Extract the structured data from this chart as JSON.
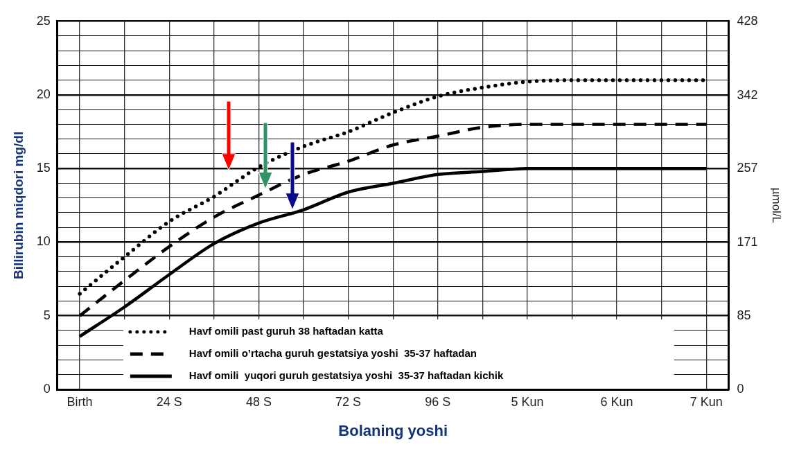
{
  "chart_data": {
    "type": "line",
    "xlabel": "Bolaning yoshi",
    "ylabel": "Billirubin miqdori mg/dl",
    "y2label": "µmol/L",
    "categories": [
      "Birth",
      null,
      "24 S",
      null,
      "48 S",
      null,
      "72 S",
      null,
      "96 S",
      null,
      "5 Kun",
      null,
      "6 Kun",
      null,
      "7 Kun"
    ],
    "ylim": [
      0,
      25
    ],
    "yticks": [
      0,
      {
        "value": 1,
        "label": null
      },
      {
        "value": 2,
        "label": null
      },
      {
        "value": 3,
        "label": null
      },
      {
        "value": 4,
        "label": null
      },
      5,
      {
        "value": 6,
        "label": null
      },
      {
        "value": 7,
        "label": null
      },
      {
        "value": 8,
        "label": null
      },
      {
        "value": 9,
        "label": null
      },
      10,
      {
        "value": 11,
        "label": null
      },
      {
        "value": 12,
        "label": null
      },
      {
        "value": 13,
        "label": null
      },
      {
        "value": 14,
        "label": null
      },
      15,
      {
        "value": 16,
        "label": null
      },
      {
        "value": 17,
        "label": null
      },
      {
        "value": 18,
        "label": null
      },
      {
        "value": 19,
        "label": null
      },
      20,
      {
        "value": 21,
        "label": null
      },
      {
        "value": 22,
        "label": null
      },
      {
        "value": 23,
        "label": null
      },
      {
        "value": 24,
        "label": null
      },
      25
    ],
    "y2lim": [
      0,
      428
    ],
    "y2ticks": [
      0,
      85,
      171,
      257,
      342,
      428
    ],
    "grid": true,
    "legend": "bottom",
    "marker": "none",
    "series": [
      {
        "name": "Havf omili past guruh 38 haftadan katta",
        "color": "#000000",
        "line_style": "dotted",
        "values": [
          6.5,
          9.0,
          11.4,
          13.1,
          15.1,
          16.5,
          17.5,
          18.8,
          19.9,
          20.5,
          20.9,
          21,
          21,
          21,
          21
        ]
      },
      {
        "name": "Havf omili o’rtacha guruh gestatsiya yoshi  35-37 haftadan",
        "color": "#000000",
        "line_style": "dashed",
        "values": [
          5.0,
          7.4,
          9.7,
          11.7,
          13.2,
          14.6,
          15.5,
          16.6,
          17.2,
          17.8,
          18.0,
          18,
          18,
          18,
          18
        ]
      },
      {
        "name": "Havf omili  yuqori guruh gestatsiya yoshi  35-37 haftadan kichik",
        "color": "#000000",
        "line_style": "solid",
        "values": [
          3.6,
          5.6,
          7.8,
          9.9,
          11.3,
          12.2,
          13.4,
          14.0,
          14.6,
          14.8,
          15.0,
          15,
          15,
          15,
          15
        ]
      }
    ]
  }
}
